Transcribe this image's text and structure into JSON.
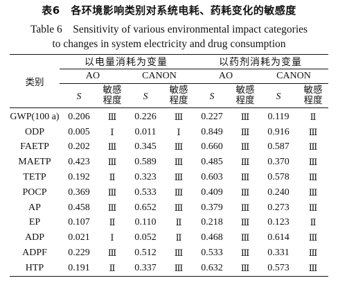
{
  "caption": {
    "chinese": "表6　各环境影响类别对系统电耗、药耗变化的敏感度",
    "english_line1": "Table 6　Sensitivity of various environmental impact categories",
    "english_line2": "to changes in system electricity and drug consumption"
  },
  "table": {
    "category_header": "类别",
    "groups": [
      "以电量消耗为变量",
      "以药剂消耗为变量"
    ],
    "methods": [
      "AO",
      "CANON",
      "AO",
      "CANON"
    ],
    "s_label": "S",
    "degree_label": "敏感\n程度",
    "rows": [
      {
        "name": "GWP(100 a)",
        "cells": [
          [
            "0.206",
            "Ⅲ"
          ],
          [
            "0.226",
            "Ⅲ"
          ],
          [
            "0.227",
            "Ⅲ"
          ],
          [
            "0.119",
            "Ⅱ"
          ]
        ]
      },
      {
        "name": "ODP",
        "cells": [
          [
            "0.005",
            "Ⅰ"
          ],
          [
            "0.011",
            "Ⅰ"
          ],
          [
            "0.849",
            "Ⅲ"
          ],
          [
            "0.916",
            "Ⅲ"
          ]
        ]
      },
      {
        "name": "FAETP",
        "cells": [
          [
            "0.202",
            "Ⅲ"
          ],
          [
            "0.345",
            "Ⅲ"
          ],
          [
            "0.660",
            "Ⅲ"
          ],
          [
            "0.587",
            "Ⅲ"
          ]
        ]
      },
      {
        "name": "MAETP",
        "cells": [
          [
            "0.423",
            "Ⅲ"
          ],
          [
            "0.589",
            "Ⅲ"
          ],
          [
            "0.485",
            "Ⅲ"
          ],
          [
            "0.370",
            "Ⅲ"
          ]
        ]
      },
      {
        "name": "TETP",
        "cells": [
          [
            "0.192",
            "Ⅱ"
          ],
          [
            "0.323",
            "Ⅲ"
          ],
          [
            "0.603",
            "Ⅲ"
          ],
          [
            "0.578",
            "Ⅲ"
          ]
        ]
      },
      {
        "name": "POCP",
        "cells": [
          [
            "0.369",
            "Ⅲ"
          ],
          [
            "0.533",
            "Ⅲ"
          ],
          [
            "0.409",
            "Ⅲ"
          ],
          [
            "0.240",
            "Ⅲ"
          ]
        ]
      },
      {
        "name": "AP",
        "cells": [
          [
            "0.458",
            "Ⅲ"
          ],
          [
            "0.652",
            "Ⅲ"
          ],
          [
            "0.379",
            "Ⅲ"
          ],
          [
            "0.273",
            "Ⅲ"
          ]
        ]
      },
      {
        "name": "EP",
        "cells": [
          [
            "0.107",
            "Ⅱ"
          ],
          [
            "0.110",
            "Ⅱ"
          ],
          [
            "0.218",
            "Ⅲ"
          ],
          [
            "0.123",
            "Ⅱ"
          ]
        ]
      },
      {
        "name": "ADP",
        "cells": [
          [
            "0.021",
            "Ⅰ"
          ],
          [
            "0.052",
            "Ⅱ"
          ],
          [
            "0.468",
            "Ⅲ"
          ],
          [
            "0.614",
            "Ⅲ"
          ]
        ]
      },
      {
        "name": "ADPF",
        "cells": [
          [
            "0.229",
            "Ⅲ"
          ],
          [
            "0.512",
            "Ⅲ"
          ],
          [
            "0.533",
            "Ⅲ"
          ],
          [
            "0.331",
            "Ⅲ"
          ]
        ]
      },
      {
        "name": "HTP",
        "cells": [
          [
            "0.191",
            "Ⅱ"
          ],
          [
            "0.337",
            "Ⅲ"
          ],
          [
            "0.632",
            "Ⅲ"
          ],
          [
            "0.573",
            "Ⅲ"
          ]
        ]
      }
    ]
  }
}
